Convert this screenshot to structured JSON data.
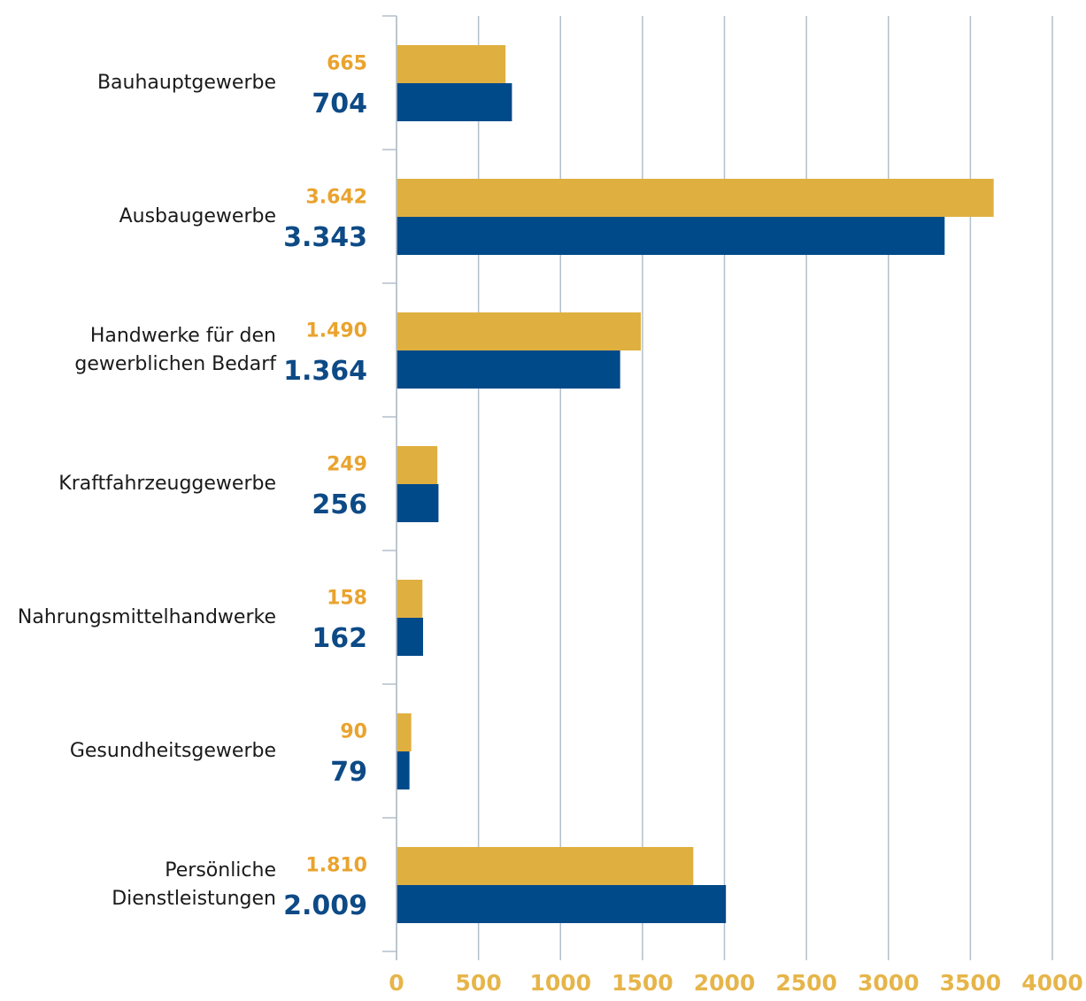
{
  "chart_data": {
    "type": "bar",
    "orientation": "horizontal",
    "categories": [
      "Bauhauptgewerbe",
      "Ausbaugewerbe",
      [
        "Handwerke für den",
        "gewerblichen Bedarf"
      ],
      "Kraftfahrzeuggewerbe",
      "Nahrungsmittelhandwerke",
      "Gesundheitsgewerbe",
      [
        "Persönliche",
        "Dienstleistungen"
      ]
    ],
    "series": [
      {
        "color": "#dfb040",
        "label_color": "#e9a32e",
        "values": [
          665,
          3642,
          1490,
          249,
          158,
          90,
          1810
        ],
        "value_labels": [
          "665",
          "3.642",
          "1.490",
          "249",
          "158",
          "90",
          "1.810"
        ]
      },
      {
        "color": "#004a8a",
        "label_color": "#0d4a86",
        "values": [
          704,
          3343,
          1364,
          256,
          162,
          79,
          2009
        ],
        "value_labels": [
          "704",
          "3.343",
          "1.364",
          "256",
          "162",
          "79",
          "2.009"
        ]
      }
    ],
    "xlim": [
      0,
      4000
    ],
    "xticks": [
      0,
      500,
      1000,
      1500,
      2000,
      2500,
      3000,
      3500,
      4000
    ],
    "grid": true
  }
}
